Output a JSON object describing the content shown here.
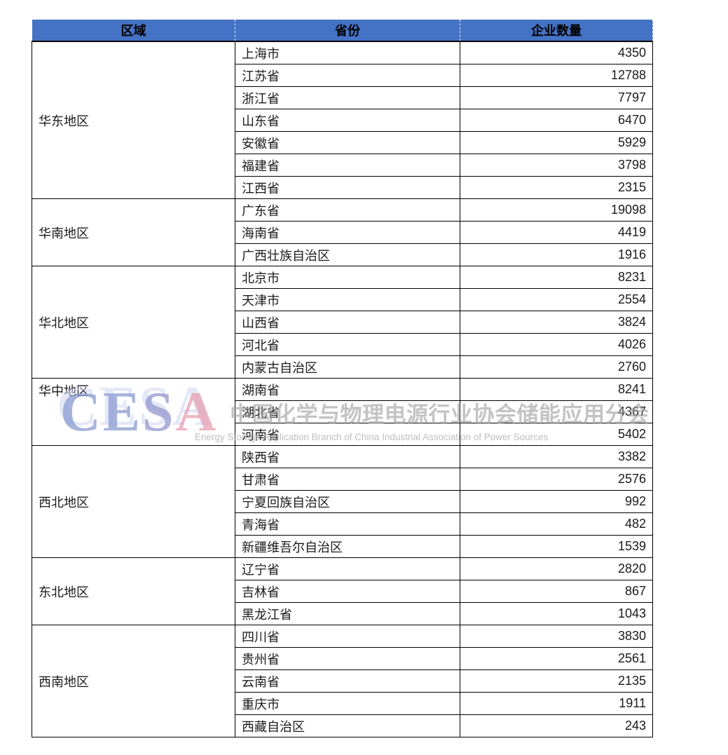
{
  "table": {
    "headers": [
      "区域",
      "省份",
      "企业数量"
    ],
    "header_bg": "#4472C4",
    "regions": [
      {
        "name": "华东地区",
        "label_align": "middle",
        "provinces": [
          {
            "province": "上海市",
            "count": "4350"
          },
          {
            "province": "江苏省",
            "count": "12788"
          },
          {
            "province": "浙江省",
            "count": "7797"
          },
          {
            "province": "山东省",
            "count": "6470"
          },
          {
            "province": "安徽省",
            "count": "5929"
          },
          {
            "province": "福建省",
            "count": "3798"
          },
          {
            "province": "江西省",
            "count": "2315"
          }
        ]
      },
      {
        "name": "华南地区",
        "label_align": "middle",
        "provinces": [
          {
            "province": "广东省",
            "count": "19098"
          },
          {
            "province": "海南省",
            "count": "4419"
          },
          {
            "province": "广西壮族自治区",
            "count": "1916"
          }
        ]
      },
      {
        "name": "华北地区",
        "label_align": "middle",
        "provinces": [
          {
            "province": "北京市",
            "count": "8231"
          },
          {
            "province": "天津市",
            "count": "2554"
          },
          {
            "province": "山西省",
            "count": "3824"
          },
          {
            "province": "河北省",
            "count": "4026"
          },
          {
            "province": "内蒙古自治区",
            "count": "2760"
          }
        ]
      },
      {
        "name": "华中地区",
        "label_align": "top",
        "provinces": [
          {
            "province": "湖南省",
            "count": "8241"
          },
          {
            "province": "湖北省",
            "count": "4367"
          },
          {
            "province": "河南省",
            "count": "5402"
          }
        ]
      },
      {
        "name": "西北地区",
        "label_align": "middle",
        "provinces": [
          {
            "province": "陕西省",
            "count": "3382"
          },
          {
            "province": "甘肃省",
            "count": "2576"
          },
          {
            "province": "宁夏回族自治区",
            "count": "992"
          },
          {
            "province": "青海省",
            "count": "482"
          },
          {
            "province": "新疆维吾尔自治区",
            "count": "1539"
          }
        ]
      },
      {
        "name": "东北地区",
        "label_align": "middle",
        "provinces": [
          {
            "province": "辽宁省",
            "count": "2820"
          },
          {
            "province": "吉林省",
            "count": "867"
          },
          {
            "province": "黑龙江省",
            "count": "1043"
          }
        ]
      },
      {
        "name": "西南地区",
        "label_align": "middle",
        "provinces": [
          {
            "province": "四川省",
            "count": "3830"
          },
          {
            "province": "贵州省",
            "count": "2561"
          },
          {
            "province": "云南省",
            "count": "2135"
          },
          {
            "province": "重庆市",
            "count": "1911"
          },
          {
            "province": "西藏自治区",
            "count": "243"
          }
        ]
      }
    ]
  },
  "watermark": {
    "logo_letters": [
      {
        "ch": "C",
        "color": "rgba(139, 153, 208, 0.75)"
      },
      {
        "ch": "E",
        "color": "rgba(139, 153, 208, 0.75)"
      },
      {
        "ch": "S",
        "color": "rgba(148, 150, 205, 0.75)"
      },
      {
        "ch": "A",
        "color": "rgba(231, 160, 178, 0.75)"
      }
    ],
    "text_cn": "中国化学与物理电源行业协会储能应用分会",
    "text_en": "Energy Storage Application Branch of China Industrial Association of Power Sources"
  }
}
